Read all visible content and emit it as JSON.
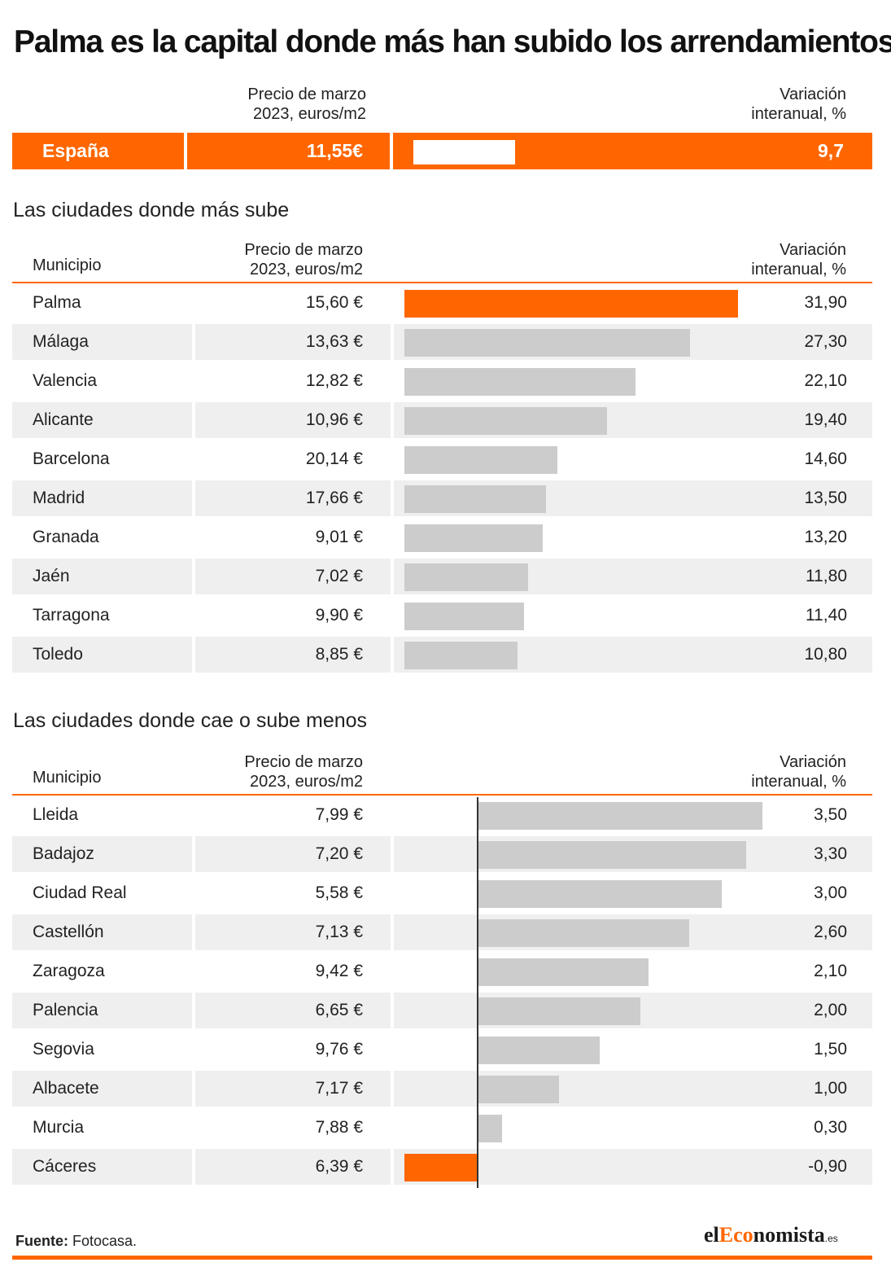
{
  "title": "Palma es la capital donde más han subido los arrendamientos",
  "colors": {
    "accent": "#ff6600",
    "bar": "#cccccc",
    "shade": "#efefef"
  },
  "top_header": {
    "price_line1": "Precio de marzo",
    "price_line2": "2023, euros/m2",
    "var_line1": "Variación",
    "var_line2": "interanual, %"
  },
  "spain": {
    "name": "España",
    "price": "11,55€",
    "variation": "9,7",
    "value": 9.7
  },
  "section1": {
    "title": "Las ciudades donde más sube",
    "col_municipio": "Municipio",
    "price_line1": "Precio de marzo",
    "price_line2": "2023, euros/m2",
    "var_line1": "Variación",
    "var_line2": "interanual, %"
  },
  "section2": {
    "title": "Las ciudades donde cae o sube menos",
    "col_municipio": "Municipio",
    "price_line1": "Precio de marzo",
    "price_line2": "2023, euros/m2",
    "var_line1": "Variación",
    "var_line2": "interanual, %"
  },
  "chart_data": [
    {
      "type": "bar",
      "title": "Las ciudades donde más sube",
      "categories": [
        "Palma",
        "Málaga",
        "Valencia",
        "Alicante",
        "Barcelona",
        "Madrid",
        "Granada",
        "Jaén",
        "Tarragona",
        "Toledo"
      ],
      "prices": [
        "15,60 €",
        "13,63 €",
        "12,82 €",
        "10,96 €",
        "20,14 €",
        "17,66 €",
        "9,01 €",
        "7,02 €",
        "9,90 €",
        "8,85 €"
      ],
      "labels": [
        "31,90",
        "27,30",
        "22,10",
        "19,40",
        "14,60",
        "13,50",
        "13,20",
        "11,80",
        "11,40",
        "10,80"
      ],
      "values": [
        31.9,
        27.3,
        22.1,
        19.4,
        14.6,
        13.5,
        13.2,
        11.8,
        11.4,
        10.8
      ],
      "highlight": [
        "Palma"
      ],
      "xlim": [
        0,
        31.9
      ]
    },
    {
      "type": "bar",
      "title": "Las ciudades donde cae o sube menos",
      "categories": [
        "Lleida",
        "Badajoz",
        "Ciudad Real",
        "Castellón",
        "Zaragoza",
        "Palencia",
        "Segovia",
        "Albacete",
        "Murcia",
        "Cáceres"
      ],
      "prices": [
        "7,99 €",
        "7,20 €",
        "5,58 €",
        "7,13 €",
        "9,42 €",
        "6,65 €",
        "9,76 €",
        "7,17 €",
        "7,88 €",
        "6,39 €"
      ],
      "labels": [
        "3,50",
        "3,30",
        "3,00",
        "2,60",
        "2,10",
        "2,00",
        "1,50",
        "1,00",
        "0,30",
        "-0,90"
      ],
      "values": [
        3.5,
        3.3,
        3.0,
        2.6,
        2.1,
        2.0,
        1.5,
        1.0,
        0.3,
        -0.9
      ],
      "highlight": [
        "Cáceres"
      ],
      "xlim": [
        -0.9,
        3.5
      ]
    }
  ],
  "footer": {
    "source_label": "Fuente:",
    "source": "Fotocasa."
  },
  "logo": {
    "el": "el",
    "e": "E",
    "co": "co",
    "rest": "nomista",
    "es": ".es"
  }
}
